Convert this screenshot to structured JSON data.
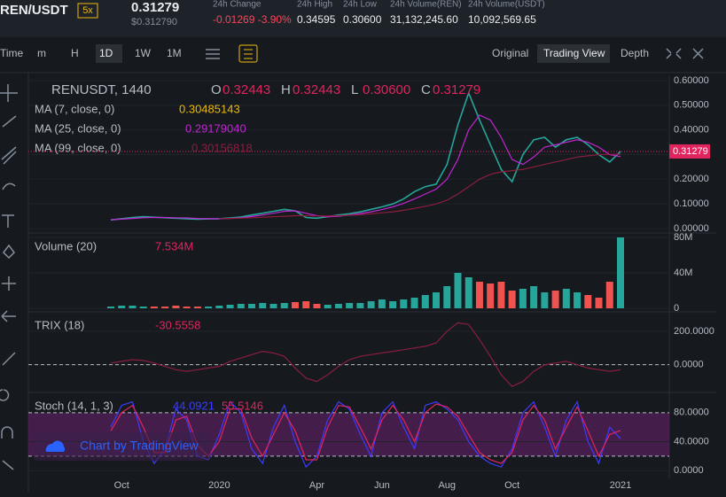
{
  "header": {
    "pair": "REN/USDT",
    "leverage": "5x",
    "price": "0.31279",
    "price_usd": "$0.312790",
    "stats": [
      {
        "label": "24h Change",
        "value": "-0.01269 -3.90%"
      },
      {
        "label": "24h High",
        "value": "0.34595"
      },
      {
        "label": "24h Low",
        "value": "0.30600"
      },
      {
        "label": "24h Volume(REN)",
        "value": "31,132,245.60"
      },
      {
        "label": "24h Volume(USDT)",
        "value": "10,092,569.65"
      }
    ]
  },
  "toolbar": {
    "intervals": [
      "Time",
      "m",
      "H",
      "1D",
      "1W",
      "1M"
    ],
    "views": [
      "Original",
      "Trading View",
      "Depth"
    ]
  },
  "watermark": "Chart by TradingView",
  "chart_data": [
    {
      "type": "line",
      "title": "RENUSDT, 1440",
      "ohlc": [
        {
          "label": "O",
          "value": "0.32443"
        },
        {
          "label": "H",
          "value": "0.32443"
        },
        {
          "label": "L",
          "value": "0.30600"
        },
        {
          "label": "C",
          "value": "0.31279"
        }
      ],
      "last_price": 0.31279,
      "last_price_label": "0.31279",
      "ylim": [
        0,
        0.6
      ],
      "yticks": [
        {
          "value": 0,
          "label": "0.00000"
        },
        {
          "value": 0.1,
          "label": "0.10000"
        },
        {
          "value": 0.2,
          "label": "0.20000"
        },
        {
          "value": 0.3,
          "label": "0.30000"
        },
        {
          "value": 0.4,
          "label": "0.40000"
        },
        {
          "value": 0.5,
          "label": "0.50000"
        },
        {
          "value": 0.6,
          "label": "0.60000"
        }
      ],
      "series": [
        {
          "name": "Close",
          "color": "#26a69a",
          "values": [
            0.035,
            0.04,
            0.045,
            0.048,
            0.046,
            0.044,
            0.042,
            0.04,
            0.038,
            0.039,
            0.04,
            0.043,
            0.047,
            0.055,
            0.062,
            0.07,
            0.078,
            0.072,
            0.045,
            0.042,
            0.048,
            0.055,
            0.06,
            0.068,
            0.078,
            0.088,
            0.1,
            0.12,
            0.15,
            0.17,
            0.18,
            0.26,
            0.42,
            0.55,
            0.44,
            0.34,
            0.24,
            0.19,
            0.3,
            0.36,
            0.37,
            0.33,
            0.36,
            0.37,
            0.34,
            0.3,
            0.27,
            0.31279
          ]
        },
        {
          "name": "MA (7, close, 0)",
          "color": "#f0b90b",
          "legend_value": "0.30485143"
        },
        {
          "name": "MA (25, close, 0)",
          "color": "#c026d3",
          "legend_value": "0.29179040",
          "values": [
            0.036,
            0.038,
            0.041,
            0.044,
            0.045,
            0.045,
            0.044,
            0.043,
            0.041,
            0.04,
            0.04,
            0.041,
            0.044,
            0.049,
            0.055,
            0.062,
            0.07,
            0.072,
            0.062,
            0.052,
            0.048,
            0.05,
            0.055,
            0.061,
            0.068,
            0.077,
            0.088,
            0.102,
            0.12,
            0.14,
            0.16,
            0.2,
            0.28,
            0.4,
            0.46,
            0.44,
            0.37,
            0.28,
            0.26,
            0.29,
            0.33,
            0.34,
            0.35,
            0.36,
            0.35,
            0.33,
            0.3,
            0.29179
          ]
        },
        {
          "name": "MA (99, close, 0)",
          "color": "#8b1d3f",
          "legend_value": "0.30156818",
          "values": [
            null,
            null,
            null,
            null,
            null,
            null,
            null,
            null,
            null,
            null,
            0.04,
            0.041,
            0.042,
            0.044,
            0.046,
            0.048,
            0.05,
            0.052,
            0.052,
            0.051,
            0.051,
            0.052,
            0.054,
            0.056,
            0.06,
            0.064,
            0.068,
            0.074,
            0.082,
            0.09,
            0.1,
            0.115,
            0.14,
            0.17,
            0.2,
            0.22,
            0.23,
            0.235,
            0.24,
            0.25,
            0.26,
            0.27,
            0.28,
            0.29,
            0.295,
            0.3,
            0.301,
            0.30157
          ]
        }
      ]
    },
    {
      "type": "bar",
      "title": "Volume (20)",
      "legend_value": "7.534M",
      "up_color": "#26a69a",
      "down_color": "#ef5350",
      "ylim": [
        0,
        80
      ],
      "yticks": [
        {
          "value": 0,
          "label": "0"
        },
        {
          "value": 40,
          "label": "40M"
        },
        {
          "value": 80,
          "label": "80M"
        }
      ],
      "values": [
        2,
        3,
        3,
        2,
        2,
        2,
        3,
        2,
        2,
        2,
        3,
        4,
        5,
        5,
        6,
        5,
        6,
        7,
        8,
        5,
        4,
        5,
        6,
        6,
        8,
        10,
        8,
        10,
        12,
        15,
        18,
        25,
        40,
        35,
        30,
        28,
        30,
        20,
        22,
        25,
        18,
        20,
        22,
        18,
        15,
        12,
        30,
        80
      ]
    },
    {
      "type": "line",
      "title": "TRIX (18)",
      "legend_value": "-30.5558",
      "dashed_level": 0,
      "ylim": [
        -150,
        300
      ],
      "yticks": [
        {
          "value": 0,
          "label": "0.0000"
        },
        {
          "value": 200,
          "label": "200.0000"
        }
      ],
      "series": [
        {
          "name": "TRIX",
          "color": "#8b1d3f",
          "values": [
            10,
            20,
            30,
            25,
            10,
            -10,
            -30,
            -40,
            -30,
            -20,
            -10,
            20,
            40,
            60,
            80,
            70,
            50,
            -20,
            -80,
            -100,
            -60,
            -10,
            30,
            50,
            60,
            70,
            80,
            90,
            100,
            110,
            130,
            200,
            250,
            240,
            150,
            50,
            -60,
            -130,
            -100,
            -40,
            0,
            10,
            20,
            0,
            -20,
            -30,
            -40,
            -30.5558
          ]
        }
      ]
    },
    {
      "type": "line",
      "title": "Stoch (14, 1, 3)",
      "band": [
        20,
        80
      ],
      "ylim": [
        -7,
        103
      ],
      "yticks": [
        {
          "value": 0,
          "label": "0.0000"
        },
        {
          "value": 40,
          "label": "40.0000"
        },
        {
          "value": 80,
          "label": "80.0000"
        }
      ],
      "categories": [
        null,
        "Oct",
        null,
        null,
        null,
        null,
        null,
        null,
        null,
        null,
        "2020",
        null,
        null,
        null,
        null,
        null,
        null,
        null,
        null,
        "Apr",
        null,
        null,
        null,
        null,
        null,
        "Jun",
        null,
        null,
        null,
        null,
        null,
        "Aug",
        null,
        null,
        null,
        null,
        null,
        "Oct",
        null,
        null,
        null,
        null,
        null,
        null,
        null,
        null,
        null,
        "2021"
      ],
      "series": [
        {
          "name": "%K",
          "color": "#3b3bff",
          "legend_value": "44.0921",
          "values": [
            60,
            90,
            95,
            40,
            10,
            30,
            85,
            70,
            20,
            15,
            50,
            95,
            80,
            30,
            10,
            60,
            90,
            40,
            5,
            20,
            70,
            95,
            85,
            50,
            20,
            80,
            95,
            60,
            30,
            90,
            95,
            85,
            70,
            40,
            20,
            10,
            5,
            30,
            80,
            95,
            60,
            20,
            70,
            95,
            40,
            10,
            60,
            44.0921
          ]
        },
        {
          "name": "%D",
          "color": "#e0245e",
          "legend_value": "55.5146",
          "values": [
            55,
            80,
            90,
            60,
            25,
            25,
            70,
            75,
            35,
            20,
            40,
            85,
            85,
            45,
            20,
            50,
            80,
            55,
            15,
            15,
            60,
            90,
            88,
            60,
            30,
            70,
            90,
            70,
            40,
            80,
            92,
            88,
            75,
            50,
            25,
            15,
            10,
            25,
            70,
            90,
            70,
            30,
            60,
            88,
            55,
            20,
            50,
            55.5146
          ]
        }
      ]
    }
  ]
}
